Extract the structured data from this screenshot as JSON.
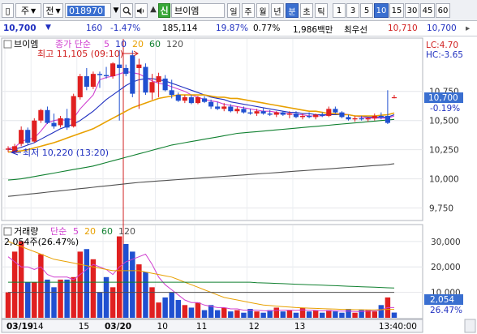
{
  "toolbar": {
    "market_label": "주",
    "view_label": "전",
    "code": "018970",
    "credit_badge": "신",
    "stock_name": "브이엠",
    "periods": [
      "일",
      "주",
      "월",
      "년",
      "분",
      "초",
      "틱"
    ],
    "active_period": "분",
    "intervals": [
      "1",
      "3",
      "5",
      "10",
      "15",
      "30",
      "45",
      "60"
    ],
    "active_interval": "10"
  },
  "quote": {
    "price": "10,700",
    "change": "160",
    "rate": "-1.47%",
    "volume": "185,114",
    "turnover": "19.87%",
    "ratio": "0.77%",
    "amount": "1,986백만",
    "min_label": "최우선",
    "bid": "10,710",
    "ask": "10,700"
  },
  "price_panel": {
    "legend_name": "브이엠",
    "legend_ma": "종가 단순",
    "legend_periods": [
      "5",
      "10",
      "20",
      "60",
      "120"
    ],
    "ma_colors": [
      "#d040d0",
      "#2030c0",
      "#e8a000",
      "#108030",
      "#505050"
    ],
    "high_label": "최고 11,105 (09:10)",
    "low_label": "최저 10,220 (13:20)",
    "lc_label": "LC:4.70",
    "hc_label": "HC:-3.65",
    "price_tag": "10,700",
    "rate_tag": "-0.19%",
    "y_ticks": [
      "10,750",
      "10,500",
      "10,250",
      "10,000",
      "9,750"
    ]
  },
  "volume_panel": {
    "legend_name": "거래량",
    "legend_ma": "단순",
    "legend_periods": [
      "5",
      "20",
      "60",
      "120"
    ],
    "current_label": "2,054주(26.47%)",
    "y_ticks": [
      "30,000",
      "20,000",
      "10,000"
    ],
    "vol_tag": "2,054",
    "pct_tag": "26.47%"
  },
  "x_axis": {
    "labels": [
      "03/19",
      "14",
      "15",
      "03/20",
      "10",
      "11",
      "12",
      "13",
      "13:40:00"
    ]
  },
  "chart_data": {
    "type": "candlestick",
    "ylim": [
      9650,
      11200
    ],
    "y_ticks": [
      10750,
      10500,
      10250,
      10000,
      9750
    ],
    "candles": [
      {
        "o": 10250,
        "h": 10280,
        "l": 10230,
        "c": 10260
      },
      {
        "o": 10230,
        "h": 10300,
        "l": 10220,
        "c": 10280
      },
      {
        "o": 10300,
        "h": 10450,
        "l": 10280,
        "c": 10420
      },
      {
        "o": 10420,
        "h": 10440,
        "l": 10290,
        "c": 10310
      },
      {
        "o": 10320,
        "h": 10520,
        "l": 10310,
        "c": 10500
      },
      {
        "o": 10500,
        "h": 10600,
        "l": 10480,
        "c": 10590
      },
      {
        "o": 10590,
        "h": 10620,
        "l": 10470,
        "c": 10480
      },
      {
        "o": 10480,
        "h": 10560,
        "l": 10430,
        "c": 10450
      },
      {
        "o": 10460,
        "h": 10540,
        "l": 10440,
        "c": 10520
      },
      {
        "o": 10520,
        "h": 10600,
        "l": 10420,
        "c": 10440
      },
      {
        "o": 10450,
        "h": 10730,
        "l": 10440,
        "c": 10710
      },
      {
        "o": 10700,
        "h": 10900,
        "l": 10680,
        "c": 10880
      },
      {
        "o": 10880,
        "h": 10950,
        "l": 10760,
        "c": 10790
      },
      {
        "o": 10790,
        "h": 10920,
        "l": 10770,
        "c": 10900
      },
      {
        "o": 10900,
        "h": 10920,
        "l": 10780,
        "c": 10890
      },
      {
        "o": 10890,
        "h": 10960,
        "l": 10860,
        "c": 10880
      },
      {
        "o": 10880,
        "h": 11000,
        "l": 10860,
        "c": 10990
      },
      {
        "o": 10980,
        "h": 11105,
        "l": 10500,
        "c": 10950
      },
      {
        "o": 10950,
        "h": 10980,
        "l": 10880,
        "c": 10900
      },
      {
        "o": 11060,
        "h": 11100,
        "l": 10700,
        "c": 10730
      },
      {
        "o": 10950,
        "h": 11030,
        "l": 10600,
        "c": 10980
      },
      {
        "o": 10960,
        "h": 10990,
        "l": 10720,
        "c": 10740
      },
      {
        "o": 10740,
        "h": 10900,
        "l": 10680,
        "c": 10830
      },
      {
        "o": 10830,
        "h": 10910,
        "l": 10700,
        "c": 10880
      },
      {
        "o": 10860,
        "h": 10890,
        "l": 10750,
        "c": 10760
      },
      {
        "o": 10760,
        "h": 10850,
        "l": 10690,
        "c": 10720
      },
      {
        "o": 10720,
        "h": 10740,
        "l": 10660,
        "c": 10670
      },
      {
        "o": 10670,
        "h": 10720,
        "l": 10650,
        "c": 10700
      },
      {
        "o": 10700,
        "h": 10720,
        "l": 10640,
        "c": 10650
      },
      {
        "o": 10650,
        "h": 10710,
        "l": 10640,
        "c": 10700
      },
      {
        "o": 10690,
        "h": 10710,
        "l": 10650,
        "c": 10660
      },
      {
        "o": 10660,
        "h": 10680,
        "l": 10600,
        "c": 10620
      },
      {
        "o": 10620,
        "h": 10660,
        "l": 10590,
        "c": 10600
      },
      {
        "o": 10600,
        "h": 10650,
        "l": 10580,
        "c": 10620
      },
      {
        "o": 10620,
        "h": 10640,
        "l": 10570,
        "c": 10580
      },
      {
        "o": 10580,
        "h": 10620,
        "l": 10560,
        "c": 10600
      },
      {
        "o": 10600,
        "h": 10620,
        "l": 10560,
        "c": 10570
      },
      {
        "o": 10570,
        "h": 10600,
        "l": 10550,
        "c": 10560
      },
      {
        "o": 10560,
        "h": 10600,
        "l": 10540,
        "c": 10580
      },
      {
        "o": 10580,
        "h": 10610,
        "l": 10550,
        "c": 10560
      },
      {
        "o": 10560,
        "h": 10590,
        "l": 10540,
        "c": 10550
      },
      {
        "o": 10550,
        "h": 10580,
        "l": 10530,
        "c": 10570
      },
      {
        "o": 10570,
        "h": 10580,
        "l": 10540,
        "c": 10550
      },
      {
        "o": 10550,
        "h": 10580,
        "l": 10520,
        "c": 10560
      },
      {
        "o": 10560,
        "h": 10580,
        "l": 10520,
        "c": 10530
      },
      {
        "o": 10530,
        "h": 10560,
        "l": 10510,
        "c": 10540
      },
      {
        "o": 10540,
        "h": 10570,
        "l": 10520,
        "c": 10530
      },
      {
        "o": 10530,
        "h": 10560,
        "l": 10510,
        "c": 10550
      },
      {
        "o": 10550,
        "h": 10570,
        "l": 10530,
        "c": 10540
      },
      {
        "o": 10540,
        "h": 10620,
        "l": 10530,
        "c": 10600
      },
      {
        "o": 10600,
        "h": 10620,
        "l": 10560,
        "c": 10570
      },
      {
        "o": 10570,
        "h": 10580,
        "l": 10520,
        "c": 10530
      },
      {
        "o": 10530,
        "h": 10550,
        "l": 10500,
        "c": 10510
      },
      {
        "o": 10510,
        "h": 10540,
        "l": 10490,
        "c": 10520
      },
      {
        "o": 10520,
        "h": 10540,
        "l": 10500,
        "c": 10510
      },
      {
        "o": 10510,
        "h": 10530,
        "l": 10490,
        "c": 10520
      },
      {
        "o": 10520,
        "h": 10560,
        "l": 10500,
        "c": 10540
      },
      {
        "o": 10540,
        "h": 10570,
        "l": 10510,
        "c": 10530
      },
      {
        "o": 10540,
        "h": 10760,
        "l": 10470,
        "c": 10480
      },
      {
        "o": 10700,
        "h": 10720,
        "l": 10690,
        "c": 10700
      }
    ],
    "ma5": [
      10260,
      10270,
      10320,
      10340,
      10350,
      10410,
      10480,
      10500,
      10510,
      10500,
      10520,
      10600,
      10660,
      10720,
      10850,
      10870,
      10880,
      10900,
      10920,
      10910,
      10900,
      10870,
      10840,
      10820,
      10810,
      10790,
      10770,
      10750,
      10720,
      10700,
      10680,
      10670,
      10660,
      10640,
      10630,
      10620,
      10610,
      10600,
      10590,
      10580,
      10580,
      10570,
      10560,
      10560,
      10550,
      10550,
      10540,
      10540,
      10540,
      10550,
      10560,
      10560,
      10550,
      10540,
      10530,
      10520,
      10520,
      10520,
      10520,
      10540
    ],
    "ma10": [
      10250,
      10255,
      10270,
      10290,
      10310,
      10340,
      10370,
      10400,
      10430,
      10450,
      10470,
      10500,
      10540,
      10580,
      10630,
      10680,
      10720,
      10760,
      10800,
      10830,
      10850,
      10860,
      10860,
      10850,
      10840,
      10820,
      10800,
      10780,
      10760,
      10740,
      10720,
      10700,
      10690,
      10680,
      10660,
      10650,
      10640,
      10630,
      10620,
      10610,
      10600,
      10590,
      10580,
      10570,
      10570,
      10560,
      10560,
      10550,
      10550,
      10550,
      10550,
      10550,
      10550,
      10540,
      10540,
      10530,
      10530,
      10530,
      10530,
      10550
    ],
    "ma20": [
      10230,
      10235,
      10240,
      10250,
      10265,
      10280,
      10295,
      10310,
      10330,
      10350,
      10370,
      10390,
      10410,
      10430,
      10460,
      10490,
      10520,
      10550,
      10580,
      10610,
      10630,
      10650,
      10670,
      10690,
      10700,
      10710,
      10720,
      10720,
      10720,
      10720,
      10720,
      10710,
      10700,
      10700,
      10690,
      10690,
      10680,
      10670,
      10660,
      10650,
      10640,
      10630,
      10620,
      10610,
      10600,
      10590,
      10580,
      10580,
      10570,
      10560,
      10560,
      10550,
      10550,
      10540,
      10540,
      10540,
      10540,
      10545,
      10550,
      10565
    ],
    "ma60": [
      9990,
      9995,
      10000,
      10010,
      10020,
      10030,
      10040,
      10050,
      10060,
      10070,
      10080,
      10090,
      10100,
      10110,
      10125,
      10140,
      10155,
      10170,
      10185,
      10200,
      10215,
      10230,
      10245,
      10260,
      10275,
      10290,
      10300,
      10310,
      10320,
      10330,
      10340,
      10350,
      10360,
      10370,
      10380,
      10390,
      10395,
      10400,
      10405,
      10410,
      10415,
      10420,
      10425,
      10430,
      10435,
      10440,
      10445,
      10450,
      10455,
      10460,
      10465,
      10470,
      10475,
      10480,
      10485,
      10490,
      10495,
      10500,
      10505,
      10510
    ],
    "ma120": [
      9850,
      9856,
      9862,
      9868,
      9874,
      9880,
      9886,
      9892,
      9898,
      9904,
      9910,
      9916,
      9922,
      9928,
      9934,
      9940,
      9946,
      9952,
      9958,
      9964,
      9970,
      9974,
      9978,
      9982,
      9986,
      9990,
      9994,
      9998,
      10002,
      10006,
      10010,
      10014,
      10018,
      10022,
      10026,
      10030,
      10034,
      10038,
      10042,
      10046,
      10050,
      10054,
      10058,
      10062,
      10066,
      10070,
      10074,
      10078,
      10082,
      10086,
      10090,
      10094,
      10098,
      10102,
      10106,
      10110,
      10114,
      10118,
      10122,
      10130
    ],
    "volume_ylim": [
      0,
      36000
    ],
    "volume": [
      10000,
      26000,
      30000,
      14000,
      14000,
      25000,
      15000,
      12000,
      15000,
      15000,
      16000,
      26000,
      27000,
      23000,
      10000,
      16000,
      12000,
      32000,
      29000,
      26000,
      21000,
      18000,
      12000,
      6000,
      8000,
      10000,
      7000,
      5000,
      4000,
      6000,
      3000,
      5000,
      3000,
      4000,
      2500,
      3000,
      2000,
      3500,
      2500,
      2000,
      3000,
      4000,
      2500,
      3000,
      2000,
      4000,
      2500,
      3000,
      2000,
      3000,
      2500,
      2000,
      3500,
      2000,
      3000,
      3000,
      2500,
      5000,
      8000,
      2054
    ],
    "volume_up": [
      true,
      true,
      true,
      false,
      true,
      true,
      false,
      false,
      true,
      false,
      true,
      true,
      false,
      true,
      false,
      false,
      true,
      true,
      false,
      false,
      true,
      false,
      true,
      true,
      false,
      false,
      false,
      true,
      false,
      true,
      false,
      false,
      false,
      true,
      false,
      true,
      false,
      false,
      true,
      false,
      false,
      true,
      false,
      true,
      false,
      true,
      false,
      true,
      false,
      true,
      false,
      false,
      false,
      true,
      false,
      true,
      true,
      false,
      true,
      false
    ],
    "volume_ma5": [
      24000,
      22000,
      20000,
      20000,
      19000,
      20000,
      17000,
      16000,
      16000,
      16000,
      15000,
      17000,
      19000,
      21000,
      20000,
      19000,
      17000,
      20000,
      22000,
      23000,
      24000,
      25000,
      21000,
      16000,
      13000,
      11000,
      9000,
      7000,
      6000,
      6000,
      5000,
      4500,
      4000,
      4000,
      3500,
      3500,
      3000,
      3000,
      3000,
      2800,
      2700,
      2900,
      3000,
      3000,
      2900,
      3100,
      3000,
      2900,
      2700,
      2800,
      2700,
      2600,
      2600,
      2500,
      2500,
      2600,
      2700,
      3100,
      4000,
      4000
    ],
    "volume_ma20": [
      30000,
      29000,
      28000,
      27000,
      26000,
      25000,
      24000,
      23000,
      22500,
      22000,
      21500,
      21000,
      20500,
      20000,
      19500,
      19000,
      18500,
      18500,
      18500,
      18500,
      18500,
      18000,
      17500,
      17000,
      16500,
      16000,
      15000,
      14000,
      13000,
      12000,
      11000,
      10000,
      9000,
      8000,
      7500,
      7000,
      6500,
      6000,
      5500,
      5000,
      4800,
      4600,
      4400,
      4200,
      4000,
      3900,
      3800,
      3700,
      3600,
      3500,
      3400,
      3300,
      3300,
      3200,
      3200,
      3100,
      3100,
      3200,
      3300,
      3300
    ],
    "volume_ma60": [
      14000,
      14000,
      14000,
      14000,
      14000,
      14000,
      14000,
      14000,
      14000,
      14000,
      14000,
      14000,
      14000,
      14000,
      14000,
      14000,
      14000,
      14000,
      14000,
      14000,
      14000,
      14000,
      14000,
      14000,
      14000,
      14000,
      14000,
      14000,
      14000,
      14000,
      14000,
      14000,
      14000,
      14000,
      14000,
      14000,
      14000,
      14000,
      13800,
      13700,
      13600,
      13500,
      13400,
      13300,
      13200,
      13100,
      13000,
      12900,
      12800,
      12700,
      12600,
      12500,
      12400,
      12300,
      12200,
      12100,
      12000,
      11900,
      11800,
      11700
    ],
    "volume_ma120": [
      10000,
      10000,
      10000,
      10000,
      10000,
      10000,
      10000,
      10000,
      10000,
      10000,
      10000,
      10000,
      10000,
      10000,
      10000,
      10000,
      10000,
      10000,
      10000,
      10000,
      10000,
      10000,
      10000,
      10000,
      10000,
      10000,
      10000,
      10000,
      10000,
      10000,
      10000,
      10000,
      10000,
      10000,
      10000,
      10000,
      10000,
      10000,
      10000,
      10000,
      10000,
      10000,
      10000,
      10000,
      10000,
      10000,
      10000,
      10000,
      10000,
      10000,
      10000,
      10000,
      10000,
      10000,
      10000,
      10000,
      10000,
      10000,
      10000,
      10000
    ],
    "volume_y_ticks": [
      30000,
      20000,
      10000
    ],
    "x_label_index": [
      0,
      4,
      11,
      15,
      23,
      29,
      37,
      44,
      56
    ]
  }
}
